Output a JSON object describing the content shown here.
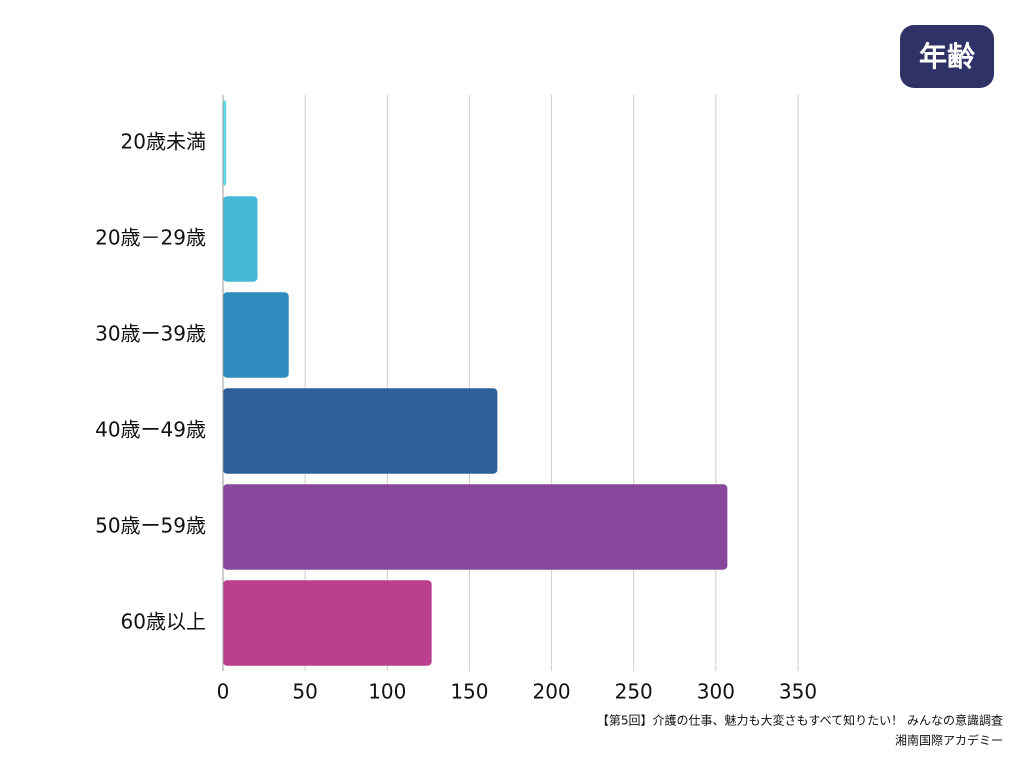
{
  "chart_data": {
    "type": "bar",
    "orientation": "horizontal",
    "title": "年齢",
    "categories": [
      "20歳未満",
      "20歳－29歳",
      "30歳ー39歳",
      "40歳ー49歳",
      "50歳ー59歳",
      "60歳以上"
    ],
    "values": [
      2,
      21,
      40,
      167,
      307,
      127
    ],
    "colors": [
      "#5fd9e8",
      "#45b8d8",
      "#2e8bbd",
      "#2d5f98",
      "#87489c",
      "#bb3f8c"
    ],
    "xlim": [
      0,
      350
    ],
    "xticks": [
      0,
      50,
      100,
      150,
      200,
      250,
      300,
      350
    ],
    "grid": true,
    "source": [
      "【第5回】介護の仕事、魅力も大変さもすべて知りたい！ みんなの意識調査",
      "湘南国際アカデミー"
    ]
  }
}
